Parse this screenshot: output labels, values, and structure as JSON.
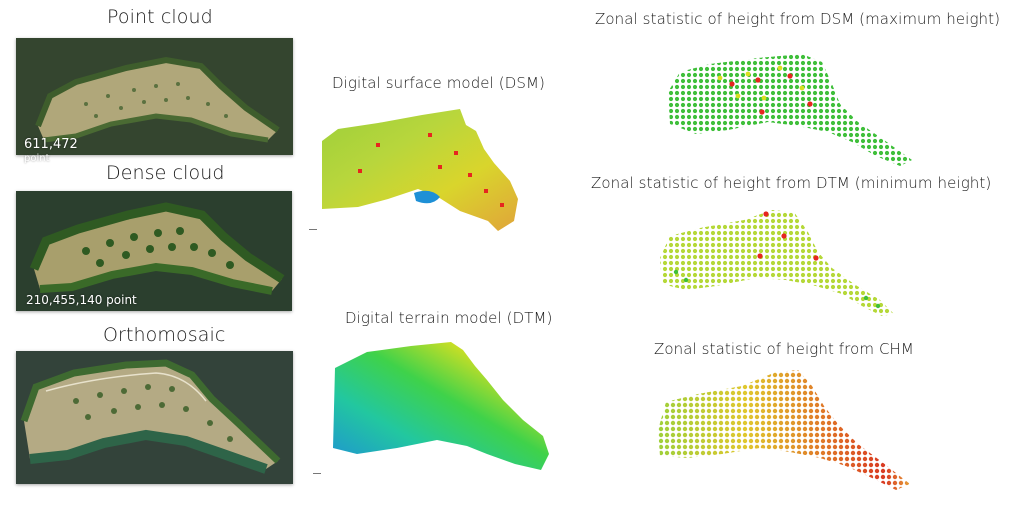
{
  "panels": {
    "point_cloud": {
      "title": "Point cloud",
      "count": "611,472",
      "unit": "point"
    },
    "dense_cloud": {
      "title": "Dense cloud",
      "count_label": "210,455,140 point"
    },
    "orthomosaic": {
      "title": "Orthomosaic"
    }
  },
  "models": {
    "dsm": {
      "title": "Digital surface model (DSM)"
    },
    "dtm": {
      "title": "Digital terrain model (DTM)"
    }
  },
  "zonal": {
    "dsm_max": {
      "title": "Zonal statistic of height from DSM (maximum height)"
    },
    "dtm_min": {
      "title": "Zonal statistic of height from DTM (minimum height)"
    },
    "chm": {
      "title": "Zonal statistic of height from CHM"
    }
  },
  "colors": {
    "water": "#304131",
    "field": "#a8a070",
    "vegetation": "#2f5a22",
    "low": "#22b14c",
    "mid": "#d9e021",
    "high": "#e6261f",
    "terrain_low": "#1e90d6"
  }
}
